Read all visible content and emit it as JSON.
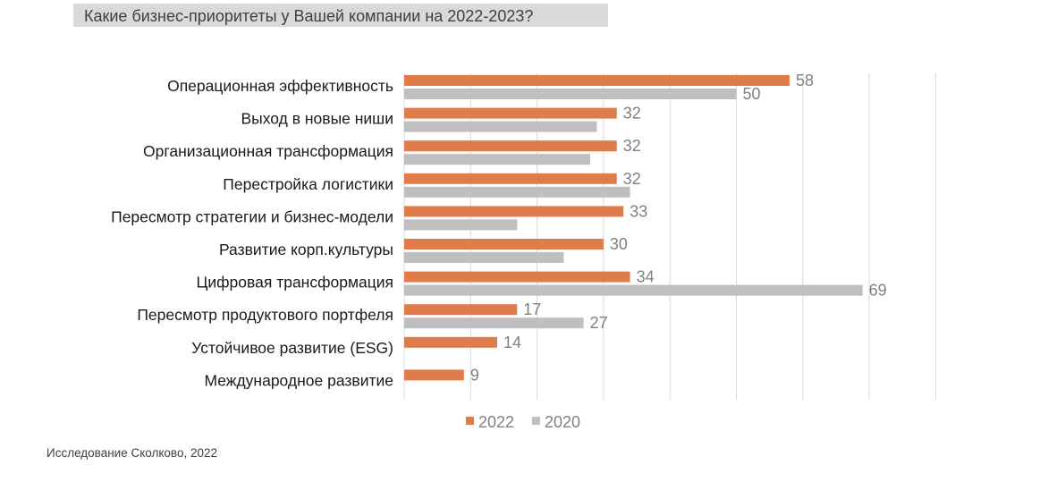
{
  "title": "Какие бизнес-приоритеты у Вашей компании на 2022-2023?",
  "source": "Исследование Сколково, 2022",
  "colors": {
    "s2022": "#e07c4b",
    "s2020": "#bfbfbf",
    "grid": "#d9d9d9",
    "title_bg": "#d9d9d9"
  },
  "chart_data": {
    "type": "bar",
    "orientation": "horizontal",
    "categories": [
      "Операционная эффективность",
      "Выход в новые ниши",
      "Организационная трансформация",
      "Перестройка логистики",
      "Пересмотр стратегии и бизнес-модели",
      "Развитие корп.культуры",
      "Цифровая трансформация",
      "Пересмотр продуктового портфеля",
      "Устойчивое развитие (ESG)",
      "Международное развитие"
    ],
    "series": [
      {
        "name": "2022",
        "values": [
          58,
          32,
          32,
          32,
          33,
          30,
          34,
          17,
          14,
          9
        ],
        "labels": [
          "58",
          "32",
          "32",
          "32",
          "33",
          "30",
          "34",
          "17",
          "14",
          "9"
        ]
      },
      {
        "name": "2020",
        "values": [
          50,
          29,
          28,
          34,
          17,
          24,
          69,
          27,
          null,
          null
        ],
        "labels": [
          "50",
          "",
          "",
          "",
          "",
          "",
          "69",
          "27",
          "",
          ""
        ]
      }
    ],
    "xlim": [
      0,
      80
    ],
    "grid": true,
    "legend": "bottom"
  }
}
